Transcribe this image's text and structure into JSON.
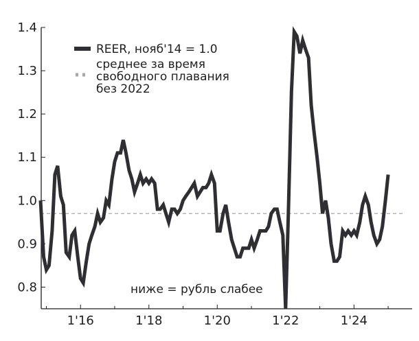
{
  "chart_data": {
    "type": "line",
    "title": "",
    "xlabel": "",
    "ylabel": "",
    "ylim": [
      0.75,
      1.4
    ],
    "xlim": [
      2014.85,
      2025.5
    ],
    "yticks": [
      {
        "value": 0.8,
        "label": "0.8"
      },
      {
        "value": 0.9,
        "label": "0.9"
      },
      {
        "value": 1.0,
        "label": "1.0"
      },
      {
        "value": 1.1,
        "label": "1.1"
      },
      {
        "value": 1.2,
        "label": "1.2"
      },
      {
        "value": 1.3,
        "label": "1.3"
      },
      {
        "value": 1.4,
        "label": "1.4"
      }
    ],
    "xticks": [
      {
        "value": 2016,
        "label": "1'16"
      },
      {
        "value": 2018,
        "label": "1'18"
      },
      {
        "value": 2020,
        "label": "1'20"
      },
      {
        "value": 2022,
        "label": "1'22"
      },
      {
        "value": 2024,
        "label": "1'24"
      }
    ],
    "grid": false,
    "legend_position": "top-left",
    "series": [
      {
        "name": "REER, нояб'14 = 1.0",
        "color": "#2e2e33",
        "style": "solid",
        "points": [
          [
            2014.83,
            1.0
          ],
          [
            2014.92,
            0.87
          ],
          [
            2015.0,
            0.84
          ],
          [
            2015.08,
            0.85
          ],
          [
            2015.17,
            0.93
          ],
          [
            2015.25,
            1.06
          ],
          [
            2015.33,
            1.08
          ],
          [
            2015.42,
            1.01
          ],
          [
            2015.5,
            0.99
          ],
          [
            2015.58,
            0.88
          ],
          [
            2015.67,
            0.87
          ],
          [
            2015.75,
            0.92
          ],
          [
            2015.83,
            0.93
          ],
          [
            2015.92,
            0.87
          ],
          [
            2016.0,
            0.82
          ],
          [
            2016.08,
            0.81
          ],
          [
            2016.17,
            0.86
          ],
          [
            2016.25,
            0.9
          ],
          [
            2016.33,
            0.92
          ],
          [
            2016.42,
            0.94
          ],
          [
            2016.5,
            0.97
          ],
          [
            2016.58,
            0.95
          ],
          [
            2016.67,
            0.96
          ],
          [
            2016.75,
            1.0
          ],
          [
            2016.83,
            0.99
          ],
          [
            2016.92,
            1.05
          ],
          [
            2017.0,
            1.09
          ],
          [
            2017.08,
            1.11
          ],
          [
            2017.17,
            1.11
          ],
          [
            2017.25,
            1.14
          ],
          [
            2017.33,
            1.11
          ],
          [
            2017.42,
            1.07
          ],
          [
            2017.5,
            1.05
          ],
          [
            2017.58,
            1.02
          ],
          [
            2017.67,
            1.04
          ],
          [
            2017.75,
            1.06
          ],
          [
            2017.83,
            1.04
          ],
          [
            2017.92,
            1.05
          ],
          [
            2018.0,
            1.04
          ],
          [
            2018.08,
            1.05
          ],
          [
            2018.17,
            1.04
          ],
          [
            2018.25,
            0.98
          ],
          [
            2018.33,
            0.98
          ],
          [
            2018.42,
            0.99
          ],
          [
            2018.5,
            0.97
          ],
          [
            2018.58,
            0.95
          ],
          [
            2018.67,
            0.98
          ],
          [
            2018.75,
            0.98
          ],
          [
            2018.83,
            0.97
          ],
          [
            2018.92,
            0.98
          ],
          [
            2019.0,
            1.0
          ],
          [
            2019.08,
            1.01
          ],
          [
            2019.17,
            1.02
          ],
          [
            2019.25,
            1.03
          ],
          [
            2019.33,
            1.04
          ],
          [
            2019.42,
            1.01
          ],
          [
            2019.5,
            1.02
          ],
          [
            2019.58,
            1.03
          ],
          [
            2019.67,
            1.03
          ],
          [
            2019.75,
            1.04
          ],
          [
            2019.83,
            1.06
          ],
          [
            2019.92,
            1.04
          ],
          [
            2020.0,
            0.93
          ],
          [
            2020.08,
            0.93
          ],
          [
            2020.17,
            0.97
          ],
          [
            2020.25,
            0.99
          ],
          [
            2020.33,
            0.95
          ],
          [
            2020.42,
            0.91
          ],
          [
            2020.5,
            0.89
          ],
          [
            2020.58,
            0.87
          ],
          [
            2020.67,
            0.87
          ],
          [
            2020.75,
            0.89
          ],
          [
            2020.83,
            0.89
          ],
          [
            2020.92,
            0.89
          ],
          [
            2021.0,
            0.91
          ],
          [
            2021.08,
            0.89
          ],
          [
            2021.17,
            0.91
          ],
          [
            2021.25,
            0.93
          ],
          [
            2021.33,
            0.93
          ],
          [
            2021.42,
            0.93
          ],
          [
            2021.5,
            0.94
          ],
          [
            2021.58,
            0.97
          ],
          [
            2021.67,
            0.98
          ],
          [
            2021.75,
            0.98
          ],
          [
            2021.83,
            0.95
          ],
          [
            2021.92,
            0.92
          ],
          [
            2022.0,
            0.75
          ],
          [
            2022.08,
            0.97
          ],
          [
            2022.17,
            1.25
          ],
          [
            2022.25,
            1.39
          ],
          [
            2022.33,
            1.38
          ],
          [
            2022.42,
            1.34
          ],
          [
            2022.5,
            1.37
          ],
          [
            2022.58,
            1.35
          ],
          [
            2022.67,
            1.33
          ],
          [
            2022.75,
            1.22
          ],
          [
            2022.83,
            1.16
          ],
          [
            2022.92,
            1.1
          ],
          [
            2023.0,
            1.04
          ],
          [
            2023.08,
            0.97
          ],
          [
            2023.17,
            1.0
          ],
          [
            2023.25,
            0.96
          ],
          [
            2023.33,
            0.9
          ],
          [
            2023.42,
            0.86
          ],
          [
            2023.5,
            0.86
          ],
          [
            2023.58,
            0.87
          ],
          [
            2023.67,
            0.93
          ],
          [
            2023.75,
            0.92
          ],
          [
            2023.83,
            0.93
          ],
          [
            2023.92,
            0.92
          ],
          [
            2024.0,
            0.93
          ],
          [
            2024.08,
            0.92
          ],
          [
            2024.17,
            0.95
          ],
          [
            2024.25,
            0.99
          ],
          [
            2024.33,
            1.01
          ],
          [
            2024.42,
            0.99
          ],
          [
            2024.5,
            0.95
          ],
          [
            2024.58,
            0.92
          ],
          [
            2024.67,
            0.9
          ],
          [
            2024.75,
            0.91
          ],
          [
            2024.83,
            0.94
          ],
          [
            2024.92,
            1.0
          ],
          [
            2025.0,
            1.06
          ]
        ]
      },
      {
        "name": "среднее за время свободного плавания без 2022",
        "color": "#a8a8a8",
        "style": "dashed",
        "points": [
          [
            2014.83,
            0.97
          ],
          [
            2025.5,
            0.97
          ]
        ]
      }
    ],
    "legend": [
      {
        "key": "solid",
        "lines": [
          "REER, нояб'14 = 1.0"
        ]
      },
      {
        "key": "dashed",
        "lines": [
          "среднее за время",
          "свободного плавания",
          "без 2022"
        ]
      }
    ],
    "annotation": "ниже = рубль слабее"
  }
}
